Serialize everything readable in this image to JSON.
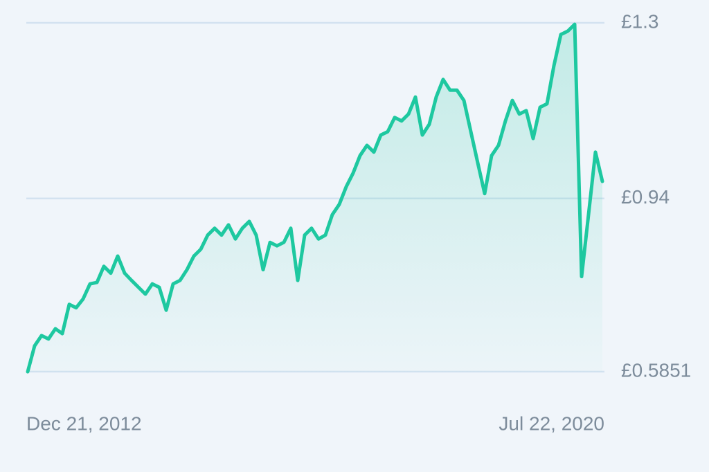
{
  "chart_data": {
    "type": "line",
    "categories": [
      "Dec 21, 2012",
      null,
      null,
      null,
      null,
      null,
      null,
      null,
      null,
      null,
      null,
      null,
      null,
      null,
      null,
      null,
      null,
      null,
      null,
      null,
      null,
      null,
      null,
      null,
      null,
      null,
      null,
      null,
      null,
      null,
      null,
      null,
      null,
      null,
      null,
      null,
      null,
      null,
      null,
      null,
      null,
      null,
      null,
      null,
      null,
      null,
      null,
      null,
      null,
      null,
      null,
      null,
      null,
      null,
      null,
      null,
      null,
      null,
      null,
      null,
      null,
      null,
      null,
      null,
      null,
      null,
      null,
      null,
      null,
      null,
      null,
      null,
      null,
      null,
      null,
      null,
      null,
      null,
      null,
      null,
      null,
      null,
      null,
      "Jul 22, 2020"
    ],
    "series": [
      {
        "color": "#1ec8a0",
        "values": [
          0.585,
          0.638,
          0.659,
          0.652,
          0.673,
          0.663,
          0.723,
          0.716,
          0.734,
          0.765,
          0.768,
          0.801,
          0.787,
          0.822,
          0.787,
          0.772,
          0.758,
          0.744,
          0.765,
          0.758,
          0.711,
          0.765,
          0.772,
          0.794,
          0.822,
          0.836,
          0.865,
          0.879,
          0.865,
          0.886,
          0.857,
          0.879,
          0.893,
          0.865,
          0.794,
          0.85,
          0.843,
          0.85,
          0.879,
          0.772,
          0.865,
          0.879,
          0.857,
          0.865,
          0.907,
          0.928,
          0.964,
          0.992,
          1.028,
          1.049,
          1.035,
          1.07,
          1.077,
          1.106,
          1.099,
          1.113,
          1.148,
          1.07,
          1.092,
          1.148,
          1.184,
          1.162,
          1.162,
          1.141,
          1.077,
          1.013,
          0.95,
          1.028,
          1.049,
          1.099,
          1.141,
          1.113,
          1.12,
          1.063,
          1.127,
          1.134,
          1.212,
          1.276,
          1.283,
          1.297,
          0.78,
          0.907,
          1.035,
          0.975
        ]
      }
    ],
    "ylim": [
      0.5851,
      1.3
    ],
    "yticks": [
      {
        "value": 1.3,
        "label": "£1.3"
      },
      {
        "value": 0.94,
        "label": "£0.94"
      },
      {
        "value": 0.5851,
        "label": "£0.5851"
      }
    ],
    "grid": true
  }
}
